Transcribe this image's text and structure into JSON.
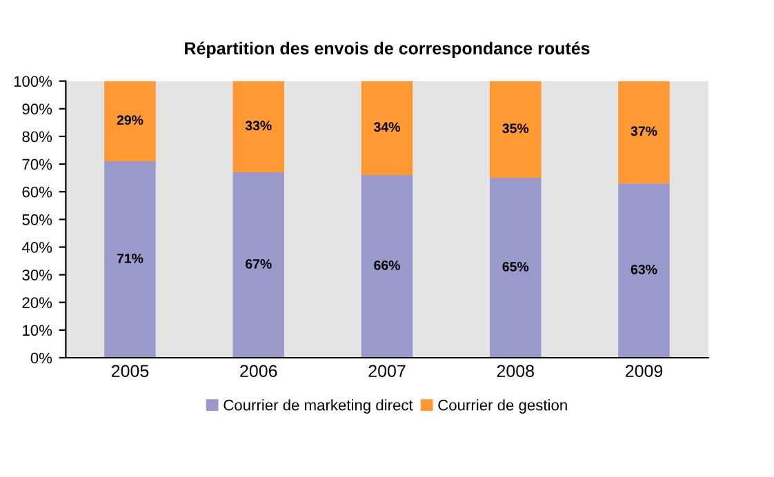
{
  "chart_data": {
    "type": "bar",
    "stacked": true,
    "title": "Répartition des envois de correspondance routés",
    "categories": [
      "2005",
      "2006",
      "2007",
      "2008",
      "2009"
    ],
    "series": [
      {
        "name": "Courrier de marketing direct",
        "color": "#9999cc",
        "values": [
          71,
          67,
          66,
          65,
          63
        ],
        "value_labels": [
          "71%",
          "67%",
          "66%",
          "65%",
          "63%"
        ]
      },
      {
        "name": "Courrier de gestion",
        "color": "#ff9933",
        "values": [
          29,
          33,
          34,
          35,
          37
        ],
        "value_labels": [
          "29%",
          "33%",
          "34%",
          "35%",
          "37%"
        ]
      }
    ],
    "ylim": [
      0,
      100
    ],
    "yticks": [
      {
        "value": 0,
        "label": "0%"
      },
      {
        "value": 10,
        "label": "10%"
      },
      {
        "value": 20,
        "label": "20%"
      },
      {
        "value": 30,
        "label": "30%"
      },
      {
        "value": 40,
        "label": "40%"
      },
      {
        "value": 50,
        "label": "50%"
      },
      {
        "value": 60,
        "label": "60%"
      },
      {
        "value": 70,
        "label": "70%"
      },
      {
        "value": 80,
        "label": "80%"
      },
      {
        "value": 90,
        "label": "90%"
      },
      {
        "value": 100,
        "label": "100%"
      }
    ],
    "grid": false,
    "legend": "bottom"
  }
}
